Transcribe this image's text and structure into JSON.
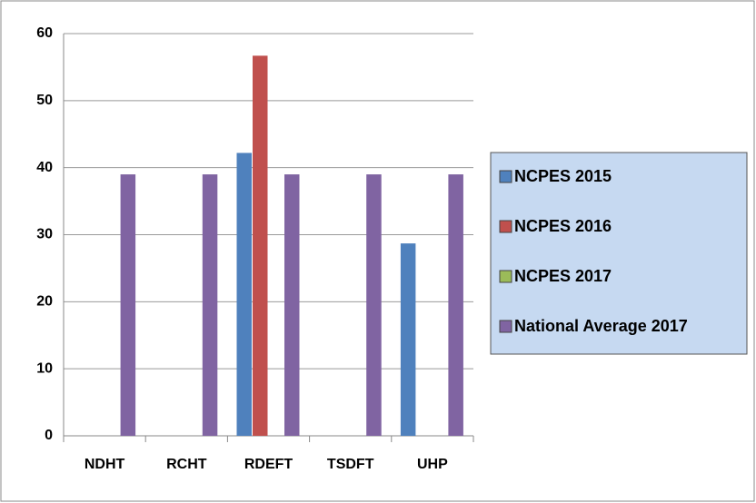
{
  "chart_data": {
    "type": "bar",
    "categories": [
      "NDHT",
      "RCHT",
      "RDEFT",
      "TSDFT",
      "UHP"
    ],
    "series": [
      {
        "name": "NCPES 2015",
        "color": "#4f81bd",
        "values": [
          null,
          null,
          42.2,
          null,
          28.7
        ]
      },
      {
        "name": "NCPES 2016",
        "color": "#c0504d",
        "values": [
          null,
          null,
          56.7,
          null,
          null
        ]
      },
      {
        "name": "NCPES 2017",
        "color": "#9bbb59",
        "values": [
          null,
          null,
          null,
          null,
          null
        ]
      },
      {
        "name": "National Average 2017",
        "color": "#8064a2",
        "values": [
          39,
          39,
          39,
          39,
          39
        ]
      }
    ],
    "ylim": [
      0,
      60
    ],
    "yticks": [
      0,
      10,
      20,
      30,
      40,
      50,
      60
    ],
    "grid": true,
    "legend": "right"
  }
}
